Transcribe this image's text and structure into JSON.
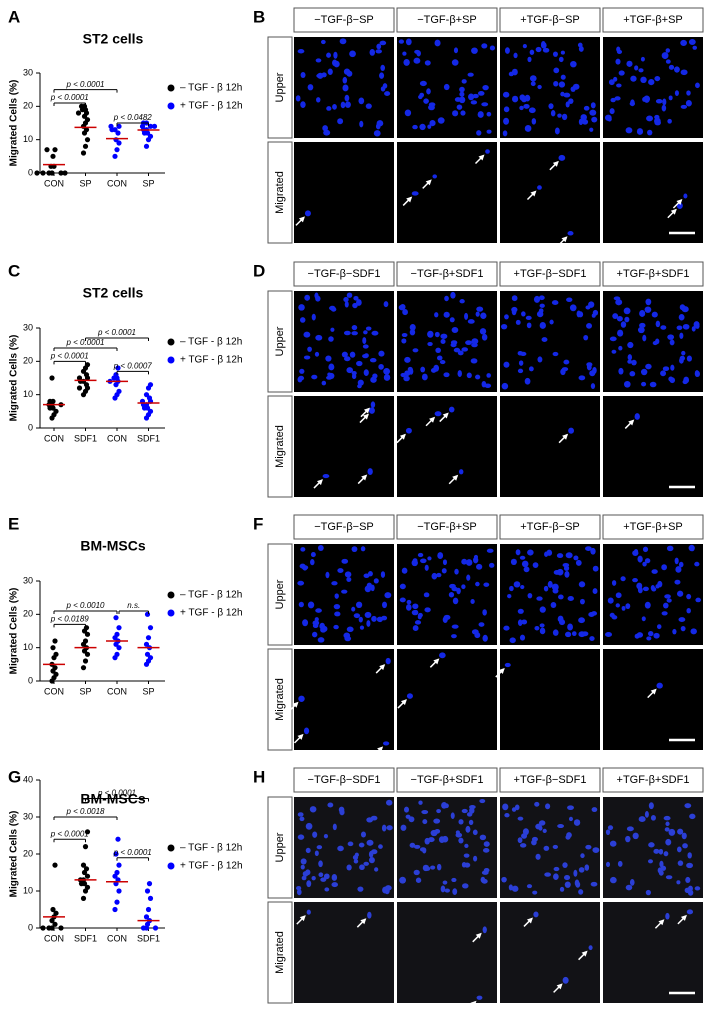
{
  "chart_data": [
    {
      "type": "strip",
      "panel": "A",
      "title": "ST2 cells",
      "y_label": "Migrated Cells (%)",
      "categories": [
        "CON",
        "SP",
        "CON",
        "SP"
      ],
      "ylim": [
        0,
        30
      ],
      "yticks": [
        0,
        10,
        20,
        30
      ],
      "series": [
        {
          "name": "– TGF - β  12h",
          "color": "#000000",
          "points": [
            [
              0,
              0,
              0,
              0,
              0,
              0,
              2,
              2,
              5,
              7,
              7
            ],
            [
              6,
              8,
              10,
              12,
              13,
              14,
              15,
              16,
              17,
              18,
              18,
              19,
              19,
              20,
              20
            ]
          ],
          "means": [
            2.5,
            13.7
          ]
        },
        {
          "name": "+ TGF - β  12h",
          "color": "#0000ff",
          "points": [
            [
              5,
              7,
              9,
              10,
              12,
              13,
              13,
              14,
              14
            ],
            [
              8,
              10,
              11,
              12,
              12,
              13,
              13,
              14,
              14,
              14,
              15,
              15
            ]
          ],
          "means": [
            10.3,
            12.9
          ]
        }
      ],
      "mean_color": "#cc0000",
      "comparisons": [
        {
          "from": 0,
          "to": 2,
          "y": 25,
          "label": "p < 0.0001"
        },
        {
          "from": 0,
          "to": 1,
          "y": 21,
          "label": "p < 0.0001"
        },
        {
          "from": 2,
          "to": 3,
          "y": 15,
          "label": "p < 0.0482"
        }
      ]
    },
    {
      "type": "strip",
      "panel": "C",
      "title": "ST2 cells",
      "y_label": "Migrated Cells (%)",
      "categories": [
        "CON",
        "SDF1",
        "CON",
        "SDF1"
      ],
      "ylim": [
        0,
        30
      ],
      "yticks": [
        0,
        10,
        20,
        30
      ],
      "series": [
        {
          "name": "– TGF - β  12h",
          "color": "#000000",
          "points": [
            [
              3,
              4,
              5,
              6,
              6,
              7,
              7,
              7,
              8,
              8,
              15
            ],
            [
              10,
              11,
              12,
              12,
              13,
              14,
              14,
              15,
              15,
              16,
              17,
              18,
              19
            ]
          ],
          "means": [
            7,
            14.3
          ]
        },
        {
          "name": "+ TGF - β  12h",
          "color": "#0000ff",
          "points": [
            [
              9,
              10,
              11,
              13,
              14,
              14,
              15,
              15,
              16,
              18
            ],
            [
              3,
              4,
              5,
              6,
              6,
              7,
              7,
              8,
              8,
              9,
              10,
              12,
              13
            ]
          ],
          "means": [
            14,
            7.5
          ]
        }
      ],
      "mean_color": "#cc0000",
      "comparisons": [
        {
          "from": 1,
          "to": 3,
          "y": 27,
          "label": "p < 0.0001"
        },
        {
          "from": 0,
          "to": 2,
          "y": 24,
          "label": "p < 0.0001"
        },
        {
          "from": 0,
          "to": 1,
          "y": 20,
          "label": "p < 0.0001"
        },
        {
          "from": 2,
          "to": 3,
          "y": 17,
          "label": "p < 0.0007"
        }
      ]
    },
    {
      "type": "strip",
      "panel": "E",
      "title": "BM-MSCs",
      "y_label": "Migrated Cells (%)",
      "categories": [
        "CON",
        "SP",
        "CON",
        "SP"
      ],
      "ylim": [
        0,
        30
      ],
      "yticks": [
        0,
        10,
        20,
        30
      ],
      "series": [
        {
          "name": "– TGF - β  12h",
          "color": "#000000",
          "points": [
            [
              0,
              1,
              2,
              3,
              4,
              5,
              7,
              8,
              10,
              12
            ],
            [
              4,
              6,
              8,
              9,
              10,
              11,
              12,
              14,
              15,
              16
            ]
          ],
          "means": [
            5,
            10
          ]
        },
        {
          "name": "+ TGF - β  12h",
          "color": "#0000ff",
          "points": [
            [
              7,
              8,
              10,
              11,
              12,
              13,
              14,
              16,
              19
            ],
            [
              5,
              6,
              7,
              8,
              10,
              11,
              13,
              16,
              20
            ]
          ],
          "means": [
            12,
            10
          ]
        }
      ],
      "mean_color": "#cc0000",
      "comparisons": [
        {
          "from": 0,
          "to": 2,
          "y": 21,
          "label": "p < 0.0010"
        },
        {
          "from": 2,
          "to": 3,
          "y": 21,
          "label": "n.s."
        },
        {
          "from": 0,
          "to": 1,
          "y": 17,
          "label": "p < 0.0189"
        }
      ]
    },
    {
      "type": "strip",
      "panel": "G",
      "title": "BM-MSCs",
      "y_label": "Migrated Cells (%)",
      "categories": [
        "CON",
        "SDF1",
        "CON",
        "SDF1"
      ],
      "ylim": [
        0,
        40
      ],
      "yticks": [
        0,
        10,
        20,
        30,
        40
      ],
      "series": [
        {
          "name": "– TGF - β  12h",
          "color": "#000000",
          "points": [
            [
              0,
              0,
              0,
              0,
              1,
              2,
              3,
              4,
              5,
              17
            ],
            [
              8,
              10,
              11,
              12,
              12,
              13,
              13,
              14,
              15,
              16,
              17,
              22,
              26
            ]
          ],
          "means": [
            3,
            13
          ]
        },
        {
          "name": "+ TGF - β  12h",
          "color": "#0000ff",
          "points": [
            [
              5,
              7,
              10,
              12,
              13,
              14,
              15,
              17,
              20,
              24
            ],
            [
              0,
              0,
              0,
              1,
              2,
              3,
              5,
              8,
              10,
              12
            ]
          ],
          "means": [
            12.5,
            2
          ]
        }
      ],
      "mean_color": "#cc0000",
      "comparisons": [
        {
          "from": 1,
          "to": 3,
          "y": 35,
          "label": "p < 0.0001"
        },
        {
          "from": 0,
          "to": 2,
          "y": 30,
          "label": "p < 0.0018"
        },
        {
          "from": 0,
          "to": 1,
          "y": 24,
          "label": "p < 0.0001"
        },
        {
          "from": 2,
          "to": 3,
          "y": 19,
          "label": "p < 0.0001"
        }
      ]
    }
  ],
  "image_panels": [
    {
      "panel": "B",
      "columns": [
        "−TGF-β−SP",
        "−TGF-β+SP",
        "+TGF-β−SP",
        "+TGF-β+SP"
      ],
      "rows": [
        "Upper",
        "Migrated"
      ]
    },
    {
      "panel": "D",
      "columns": [
        "−TGF-β−SDF1",
        "−TGF-β+SDF1",
        "+TGF-β−SDF1",
        "+TGF-β+SDF1"
      ],
      "rows": [
        "Upper",
        "Migrated"
      ]
    },
    {
      "panel": "F",
      "columns": [
        "−TGF-β−SP",
        "−TGF-β+SP",
        "+TGF-β−SP",
        "+TGF-β+SP"
      ],
      "rows": [
        "Upper",
        "Migrated"
      ]
    },
    {
      "panel": "H",
      "columns": [
        "−TGF-β−SDF1",
        "−TGF-β+SDF1",
        "+TGF-β−SDF1",
        "+TGF-β+SDF1"
      ],
      "rows": [
        "Upper",
        "Migrated"
      ]
    }
  ]
}
